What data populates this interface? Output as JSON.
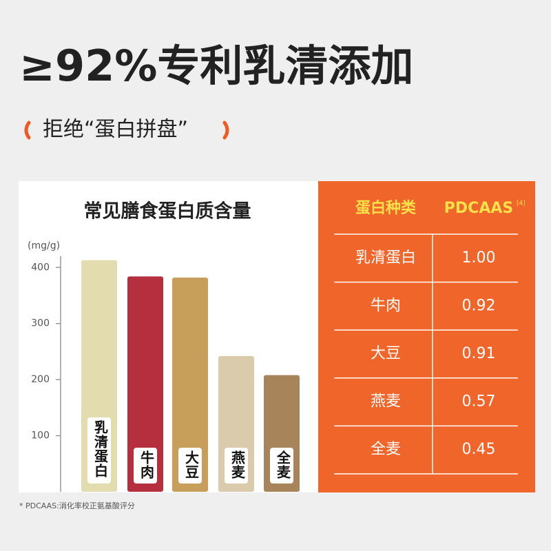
{
  "headline": "≥92%专利乳清添加",
  "subtitle": "拒绝“蛋白拼盘”",
  "chart_data": {
    "type": "bar",
    "title": "常见膳食蛋白质含量",
    "y_label": "(mg/g)",
    "categories": [
      "乳清蛋白",
      "牛肉",
      "大豆",
      "燕麦",
      "全麦"
    ],
    "values": [
      413,
      384,
      382,
      242,
      208
    ],
    "colors": [
      "#e3dcae",
      "#b52f3e",
      "#c89f5a",
      "#d9cbab",
      "#a8845a"
    ],
    "ylim": [
      0,
      420
    ],
    "yticks": [
      100,
      200,
      300,
      400
    ],
    "grid": false
  },
  "table": {
    "header": [
      "蛋白种类",
      "PDCAAS"
    ],
    "header_note": "[4]",
    "rows": [
      [
        "乳清蛋白",
        "1.00"
      ],
      [
        "牛肉",
        "0.92"
      ],
      [
        "大豆",
        "0.91"
      ],
      [
        "燕麦",
        "0.57"
      ],
      [
        "全麦",
        "0.45"
      ]
    ]
  },
  "footnote": "* PDCAAS:消化率校正氨基酸评分"
}
